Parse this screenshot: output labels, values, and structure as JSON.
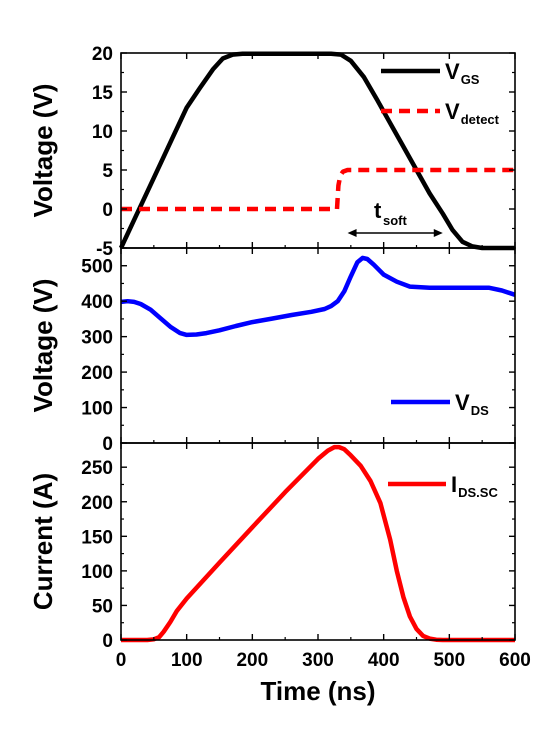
{
  "chart_data": [
    {
      "type": "line",
      "panel": "top",
      "ylabel": "Voltage (V)",
      "ylim": [
        -5,
        20
      ],
      "yticks": [
        -5,
        0,
        5,
        10,
        15,
        20
      ],
      "xlim": [
        0,
        600
      ],
      "series": [
        {
          "name": "V_GS",
          "label_main": "V",
          "label_sub": "GS",
          "color": "#000000",
          "style": "solid",
          "x": [
            0,
            20,
            40,
            60,
            80,
            100,
            120,
            140,
            155,
            170,
            185,
            200,
            250,
            300,
            320,
            335,
            350,
            370,
            390,
            410,
            430,
            450,
            470,
            490,
            505,
            520,
            535,
            550,
            600
          ],
          "y": [
            -5,
            -1.4,
            2.2,
            5.8,
            9.4,
            13.0,
            15.5,
            17.9,
            19.3,
            19.8,
            19.9,
            19.9,
            19.9,
            19.9,
            19.9,
            19.8,
            19.0,
            16.9,
            14.0,
            11.0,
            8.0,
            5.0,
            2.0,
            -0.6,
            -2.7,
            -4.2,
            -4.8,
            -5.0,
            -5.0
          ]
        },
        {
          "name": "V_detect",
          "label_main": "V",
          "label_sub": "detect",
          "color": "#ff0000",
          "style": "dashed",
          "x": [
            0,
            329,
            331,
            334,
            338,
            345,
            360,
            600
          ],
          "y": [
            0,
            0,
            3.0,
            4.3,
            4.8,
            5.0,
            5.0,
            5.0
          ]
        }
      ],
      "annotation": {
        "main": "t",
        "sub": "soft",
        "x_start": 345,
        "x_end": 490
      }
    },
    {
      "type": "line",
      "panel": "middle",
      "ylabel": "Voltage (V)",
      "ylim": [
        0,
        550
      ],
      "yticks": [
        0,
        100,
        200,
        300,
        400,
        500
      ],
      "xlim": [
        0,
        600
      ],
      "series": [
        {
          "name": "V_DS",
          "label_main": "V",
          "label_sub": "DS",
          "color": "#0000ff",
          "style": "solid",
          "x": [
            0,
            10,
            20,
            30,
            45,
            60,
            75,
            90,
            100,
            115,
            130,
            150,
            175,
            200,
            230,
            260,
            290,
            310,
            320,
            330,
            340,
            350,
            360,
            368,
            375,
            385,
            400,
            420,
            440,
            470,
            500,
            530,
            560,
            580,
            600
          ],
          "y": [
            398,
            400,
            398,
            392,
            376,
            352,
            328,
            310,
            305,
            306,
            310,
            318,
            330,
            341,
            351,
            361,
            370,
            378,
            386,
            400,
            428,
            470,
            510,
            522,
            519,
            503,
            475,
            455,
            441,
            438,
            438,
            438,
            438,
            430,
            418
          ]
        }
      ]
    },
    {
      "type": "line",
      "panel": "bottom",
      "ylabel": "Current (A)",
      "xlabel": "Time (ns)",
      "ylim": [
        0,
        285
      ],
      "yticks": [
        0,
        50,
        100,
        150,
        200,
        250
      ],
      "xlim": [
        0,
        600
      ],
      "xticks": [
        0,
        100,
        200,
        300,
        400,
        500,
        600
      ],
      "series": [
        {
          "name": "I_DS.SC",
          "label_main": "I",
          "label_sub": "DS.SC",
          "color": "#ff0000",
          "style": "solid",
          "x": [
            0,
            40,
            50,
            58,
            65,
            75,
            85,
            100,
            150,
            200,
            250,
            300,
            315,
            325,
            332,
            340,
            350,
            365,
            380,
            395,
            410,
            420,
            430,
            440,
            450,
            460,
            470,
            480,
            490,
            500,
            600
          ],
          "y": [
            0,
            0,
            1,
            4,
            12,
            26,
            42,
            60,
            112,
            163,
            214,
            262,
            274,
            279,
            279,
            276,
            267,
            252,
            230,
            198,
            145,
            100,
            62,
            34,
            16,
            6,
            2,
            0.5,
            0,
            0,
            0
          ]
        }
      ]
    }
  ]
}
